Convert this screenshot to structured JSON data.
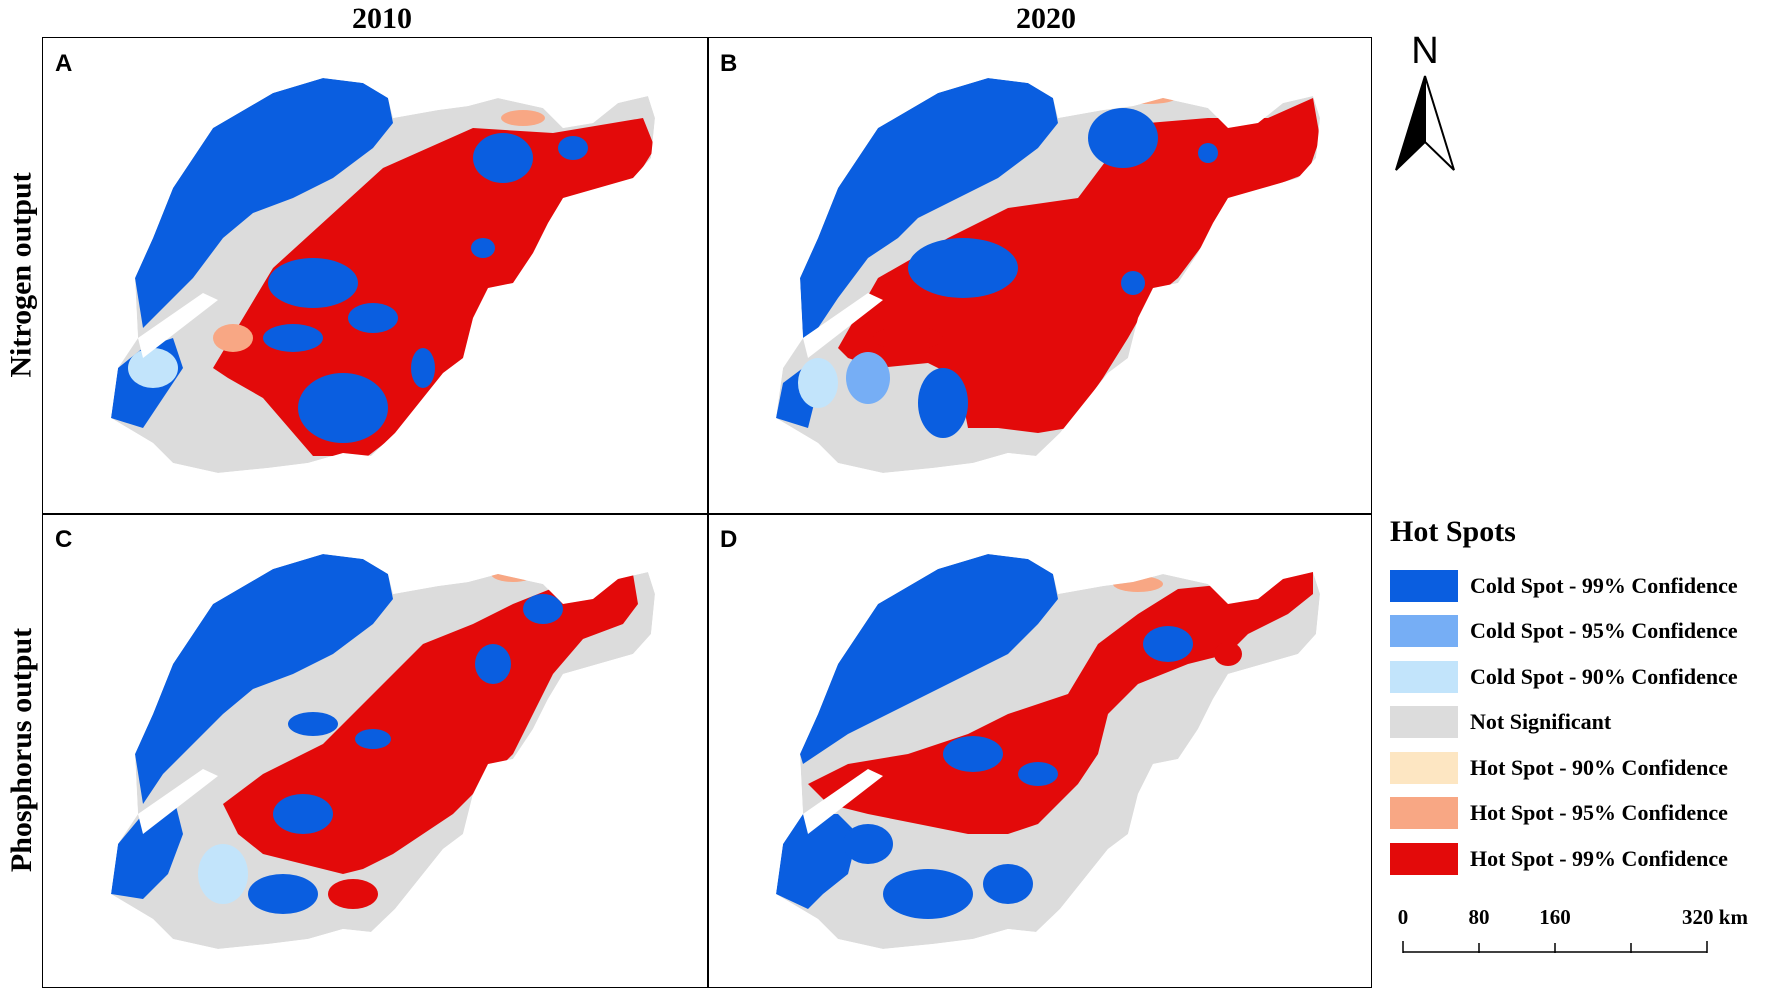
{
  "columns": [
    "2010",
    "2020"
  ],
  "rows": [
    "Nitrogen output",
    "Phosphorus output"
  ],
  "panels": [
    {
      "letter": "A",
      "year": "2010",
      "variable": "Nitrogen output"
    },
    {
      "letter": "B",
      "year": "2020",
      "variable": "Nitrogen output"
    },
    {
      "letter": "C",
      "year": "2010",
      "variable": "Phosphorus output"
    },
    {
      "letter": "D",
      "year": "2020",
      "variable": "Phosphorus output"
    }
  ],
  "north_arrow": {
    "label": "N",
    "icon": "north-arrow-icon"
  },
  "legend": {
    "title": "Hot Spots",
    "items": [
      {
        "label": "Cold Spot - 99% Confidence",
        "color": "#0a5ee0"
      },
      {
        "label": "Cold Spot - 95% Confidence",
        "color": "#76aef5"
      },
      {
        "label": "Cold Spot - 90% Confidence",
        "color": "#c2e4fb"
      },
      {
        "label": "Not Significant",
        "color": "#dcdcdc"
      },
      {
        "label": "Hot Spot - 90% Confidence",
        "color": "#fde6c2"
      },
      {
        "label": "Hot Spot - 95% Confidence",
        "color": "#f8a784"
      },
      {
        "label": "Hot Spot - 99% Confidence",
        "color": "#e30a0a"
      }
    ]
  },
  "scale_bar": {
    "ticks": [
      "0",
      "80",
      "160",
      "320 km"
    ]
  }
}
